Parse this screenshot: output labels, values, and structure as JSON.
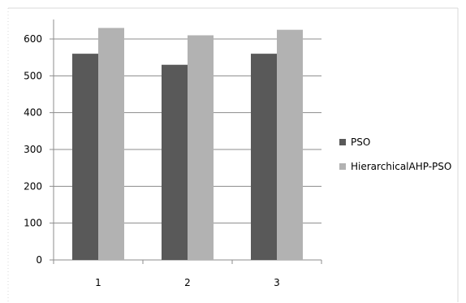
{
  "chart_data": {
    "type": "bar",
    "categories": [
      "1",
      "2",
      "3"
    ],
    "series": [
      {
        "name": "PSO",
        "values": [
          560,
          530,
          560
        ],
        "color": "#595959"
      },
      {
        "name": "HierarchicalAHP-PSO",
        "values": [
          630,
          610,
          625
        ],
        "color": "#b2b2b2"
      }
    ],
    "y_ticks": [
      "0",
      "100",
      "200",
      "300",
      "400",
      "500",
      "600"
    ],
    "ylim": [
      0,
      650
    ],
    "grid": true,
    "legend_position": "right",
    "title": "",
    "xlabel": "",
    "ylabel": ""
  }
}
